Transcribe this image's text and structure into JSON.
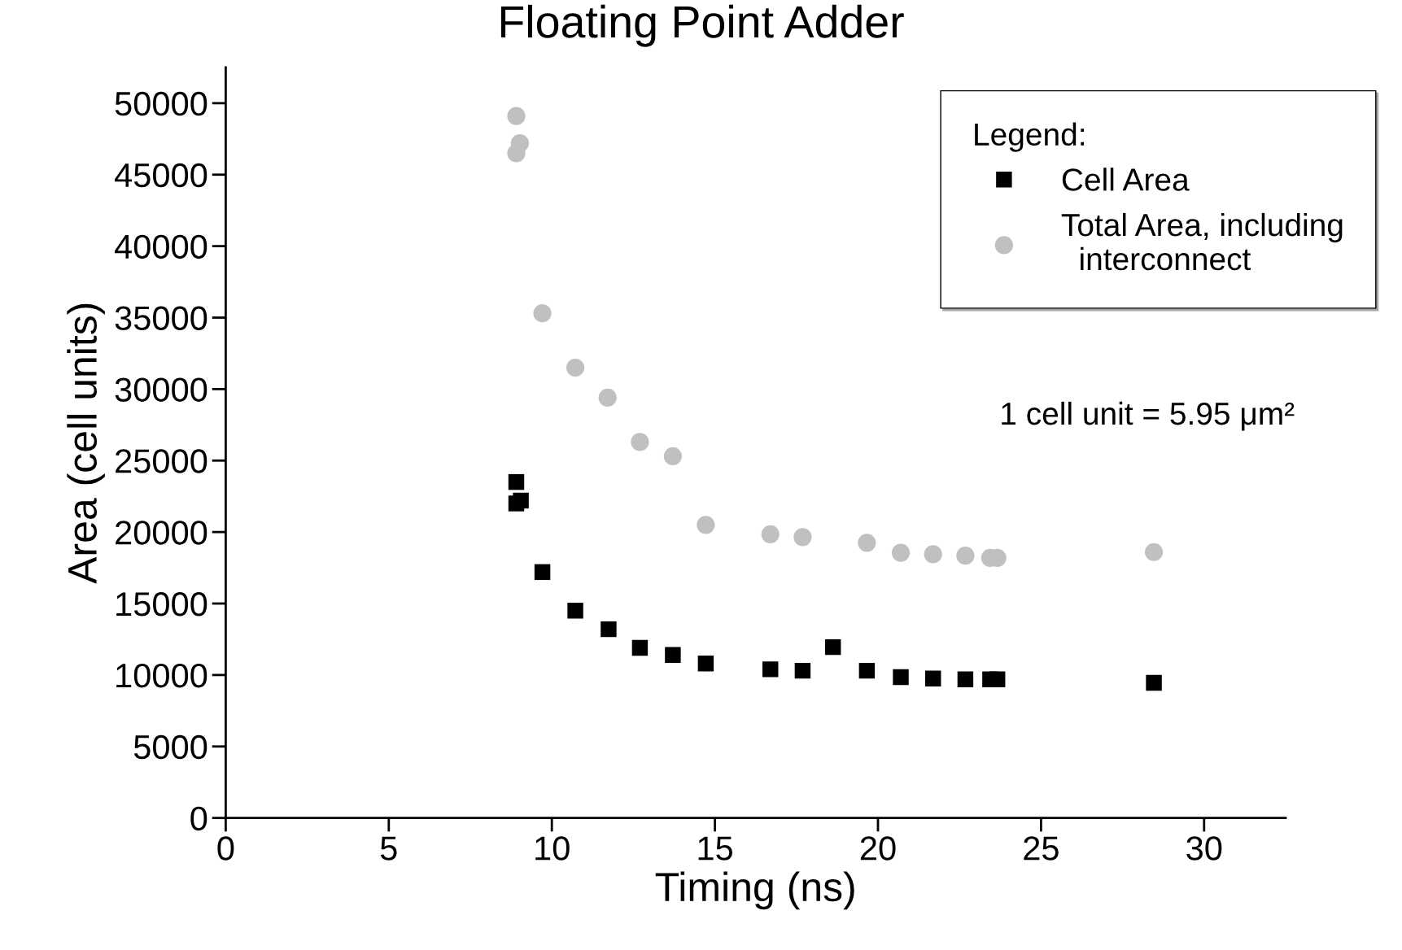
{
  "chart_data": {
    "type": "scatter",
    "title": "Floating Point Adder",
    "xlabel": "Timing (ns)",
    "ylabel": "Area (cell units)",
    "legend_title": "Legend:",
    "annotations": [
      "1 cell unit = 5.95 μm²"
    ],
    "xlim": [
      0,
      32.5
    ],
    "xticks": [
      0,
      5,
      10,
      15,
      20,
      25,
      30
    ],
    "ylim": [
      0,
      52500
    ],
    "yticks": [
      0,
      5000,
      10000,
      15000,
      20000,
      25000,
      30000,
      35000,
      40000,
      45000,
      50000
    ],
    "grid": false,
    "legend": "top right",
    "series": [
      {
        "name": "Cell Area",
        "color": "#000000",
        "marker": "square",
        "x": [
          8.91,
          8.91,
          9.05,
          9.71,
          10.72,
          11.74,
          12.7,
          13.71,
          14.72,
          16.7,
          17.69,
          18.62,
          19.66,
          20.7,
          21.69,
          22.68,
          23.44,
          23.66,
          28.46
        ],
        "values": [
          23500,
          22000,
          22200,
          17200,
          14500,
          13200,
          11900,
          11400,
          10800,
          10400,
          10300,
          11950,
          10300,
          9850,
          9750,
          9700,
          9700,
          9700,
          9450
        ]
      },
      {
        "name": "Total Area, including\n  interconnect",
        "color": "#c0c0c0",
        "marker": "circle",
        "x": [
          8.91,
          9.02,
          8.91,
          9.71,
          10.72,
          11.71,
          12.7,
          13.71,
          14.72,
          16.7,
          17.69,
          19.66,
          20.7,
          21.69,
          22.68,
          23.44,
          23.66,
          28.46
        ],
        "values": [
          49100,
          47200,
          46500,
          35300,
          31500,
          29400,
          26300,
          25300,
          20500,
          19850,
          19650,
          19250,
          18550,
          18450,
          18350,
          18200,
          18200,
          18600
        ]
      }
    ]
  }
}
